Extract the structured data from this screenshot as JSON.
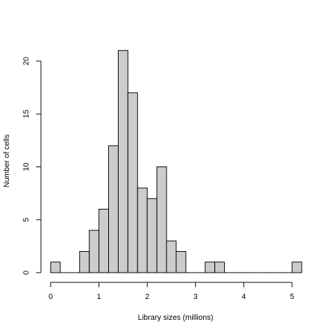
{
  "chart_data": {
    "type": "bar",
    "title": "",
    "xlabel": "Library sizes (millions)",
    "ylabel": "Number of cells",
    "bin_width": 0.2,
    "bins": [
      {
        "start": 0.0,
        "end": 0.2,
        "count": 1
      },
      {
        "start": 0.2,
        "end": 0.4,
        "count": 0
      },
      {
        "start": 0.4,
        "end": 0.6,
        "count": 0
      },
      {
        "start": 0.6,
        "end": 0.8,
        "count": 2
      },
      {
        "start": 0.8,
        "end": 1.0,
        "count": 4
      },
      {
        "start": 1.0,
        "end": 1.2,
        "count": 6
      },
      {
        "start": 1.2,
        "end": 1.4,
        "count": 12
      },
      {
        "start": 1.4,
        "end": 1.6,
        "count": 21
      },
      {
        "start": 1.6,
        "end": 1.8,
        "count": 17
      },
      {
        "start": 1.8,
        "end": 2.0,
        "count": 8
      },
      {
        "start": 2.0,
        "end": 2.2,
        "count": 7
      },
      {
        "start": 2.2,
        "end": 2.4,
        "count": 10
      },
      {
        "start": 2.4,
        "end": 2.6,
        "count": 3
      },
      {
        "start": 2.6,
        "end": 2.8,
        "count": 2
      },
      {
        "start": 2.8,
        "end": 3.0,
        "count": 0
      },
      {
        "start": 3.0,
        "end": 3.2,
        "count": 0
      },
      {
        "start": 3.2,
        "end": 3.4,
        "count": 1
      },
      {
        "start": 3.4,
        "end": 3.6,
        "count": 1
      },
      {
        "start": 3.6,
        "end": 3.8,
        "count": 0
      },
      {
        "start": 3.8,
        "end": 4.0,
        "count": 0
      },
      {
        "start": 4.0,
        "end": 4.2,
        "count": 0
      },
      {
        "start": 4.2,
        "end": 4.4,
        "count": 0
      },
      {
        "start": 4.4,
        "end": 4.6,
        "count": 0
      },
      {
        "start": 4.6,
        "end": 4.8,
        "count": 0
      },
      {
        "start": 4.8,
        "end": 5.0,
        "count": 0
      },
      {
        "start": 5.0,
        "end": 5.2,
        "count": 1
      }
    ],
    "xlim": [
      0,
      5.2
    ],
    "ylim": [
      0,
      21
    ],
    "x_ticks": [
      "0",
      "1",
      "2",
      "3",
      "4",
      "5"
    ],
    "y_ticks": [
      "0",
      "5",
      "10",
      "15",
      "20"
    ],
    "grid": false,
    "bar_color": "#cccccc",
    "border_color": "#000000"
  }
}
